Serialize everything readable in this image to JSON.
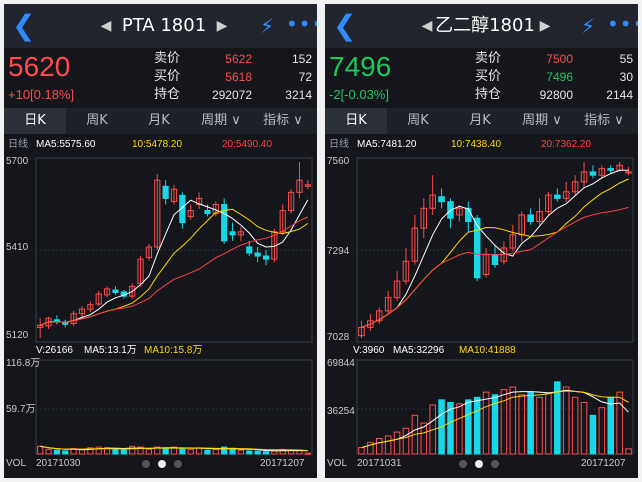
{
  "colors": {
    "up": "#ff4b4b",
    "down": "#19d7e6",
    "neutral": "#e6e6e6",
    "ma5": "#ffffff",
    "ma10": "#ffd800",
    "ma20": "#ff4040",
    "accent": "#2f8cff"
  },
  "panels": [
    {
      "symbol": "PTA 1801",
      "last_price": "5620",
      "last_color": "up",
      "change": "+10[0.18%]",
      "change_color": "up",
      "quote_rows": [
        {
          "label": "卖价",
          "value": "5622",
          "value_color": "up",
          "volume": "152"
        },
        {
          "label": "买价",
          "value": "5618",
          "value_color": "up",
          "volume": "72"
        },
        {
          "label": "持仓",
          "value": "292072",
          "value_color": "neutral",
          "volume": "3214"
        }
      ],
      "tabs": [
        "日K",
        "周K",
        "月K",
        "周期",
        "指标"
      ],
      "active_tab": 0,
      "ma_line": {
        "prefix": "日线",
        "ma5": "MA5:5575.60",
        "ma10": "10:5478.20",
        "ma20": "20:5490.40"
      },
      "price_axis": [
        "5700",
        "5410",
        "5120"
      ],
      "volume_line": {
        "v": "V:26166",
        "ma5": "MA5:13.1万",
        "ma10": "MA10:15.8万"
      },
      "volume_axis": [
        "116.8万",
        "59.7万",
        "VOL"
      ],
      "date_start": "20171030",
      "date_end": "20171207",
      "chart_data": {
        "type": "candlestick",
        "price_range": [
          5120,
          5700
        ],
        "volume_range": [
          0,
          116.8
        ],
        "candles": [
          [
            5155,
            5162,
            5120,
            5185,
            10
          ],
          [
            5160,
            5185,
            5150,
            5190,
            6
          ],
          [
            5180,
            5175,
            5165,
            5195,
            5
          ],
          [
            5172,
            5165,
            5155,
            5180,
            4
          ],
          [
            5168,
            5200,
            5160,
            5210,
            7
          ],
          [
            5200,
            5215,
            5190,
            5225,
            6
          ],
          [
            5215,
            5230,
            5205,
            5240,
            8
          ],
          [
            5232,
            5265,
            5225,
            5275,
            9
          ],
          [
            5262,
            5282,
            5255,
            5290,
            8
          ],
          [
            5278,
            5270,
            5262,
            5290,
            6
          ],
          [
            5272,
            5258,
            5250,
            5278,
            5
          ],
          [
            5258,
            5290,
            5250,
            5300,
            10
          ],
          [
            5300,
            5380,
            5290,
            5390,
            9
          ],
          [
            5385,
            5420,
            5375,
            5430,
            6
          ],
          [
            5420,
            5640,
            5410,
            5660,
            9
          ],
          [
            5620,
            5580,
            5560,
            5640,
            7
          ],
          [
            5570,
            5610,
            5560,
            5625,
            9
          ],
          [
            5590,
            5500,
            5480,
            5600,
            8
          ],
          [
            5520,
            5540,
            5510,
            5560,
            6
          ],
          [
            5560,
            5580,
            5545,
            5600,
            8
          ],
          [
            5540,
            5530,
            5520,
            5560,
            5
          ],
          [
            5530,
            5560,
            5520,
            5570,
            6
          ],
          [
            5560,
            5440,
            5430,
            5580,
            9
          ],
          [
            5470,
            5460,
            5440,
            5500,
            7
          ],
          [
            5460,
            5470,
            5440,
            5485,
            5
          ],
          [
            5420,
            5400,
            5390,
            5440,
            4
          ],
          [
            5400,
            5390,
            5370,
            5420,
            4
          ],
          [
            5390,
            5380,
            5360,
            5410,
            3
          ],
          [
            5380,
            5470,
            5370,
            5480,
            4
          ],
          [
            5470,
            5540,
            5460,
            5560,
            6
          ],
          [
            5540,
            5600,
            5530,
            5610,
            5
          ],
          [
            5600,
            5640,
            5580,
            5700,
            5
          ],
          [
            5620,
            5625,
            5610,
            5640,
            1
          ]
        ]
      }
    },
    {
      "symbol": "乙二醇1801",
      "last_price": "7496",
      "last_color": "downg",
      "change": "-2[-0.03%]",
      "change_color": "downg",
      "quote_rows": [
        {
          "label": "卖价",
          "value": "7500",
          "value_color": "up",
          "volume": "55"
        },
        {
          "label": "买价",
          "value": "7496",
          "value_color": "downg",
          "volume": "30"
        },
        {
          "label": "持仓",
          "value": "92800",
          "value_color": "neutral",
          "volume": "2144"
        }
      ],
      "tabs": [
        "日K",
        "周K",
        "月K",
        "周期",
        "指标"
      ],
      "active_tab": 0,
      "ma_line": {
        "prefix": "日线",
        "ma5": "MA5:7481.20",
        "ma10": "10:7438.40",
        "ma20": "20:7362.20"
      },
      "price_axis": [
        "7560",
        "7294",
        "7028"
      ],
      "volume_line": {
        "v": "V:3960",
        "ma5": "MA5:32296",
        "ma10": "MA10:41888"
      },
      "volume_axis": [
        "69844",
        "36254",
        "VOL"
      ],
      "date_start": "20171031",
      "date_end": "20171207",
      "chart_data": {
        "type": "candlestick",
        "price_range": [
          7028,
          7560
        ],
        "volume_range": [
          0,
          69844
        ],
        "candles": [
          [
            7035,
            7060,
            7028,
            7080,
            5000
          ],
          [
            7060,
            7080,
            7050,
            7100,
            9000
          ],
          [
            7080,
            7110,
            7070,
            7120,
            12000
          ],
          [
            7110,
            7150,
            7100,
            7170,
            14000
          ],
          [
            7150,
            7200,
            7140,
            7230,
            17000
          ],
          [
            7200,
            7260,
            7190,
            7300,
            20000
          ],
          [
            7260,
            7360,
            7250,
            7400,
            30000
          ],
          [
            7360,
            7420,
            7330,
            7450,
            24000
          ],
          [
            7420,
            7460,
            7400,
            7520,
            38000
          ],
          [
            7455,
            7440,
            7420,
            7480,
            42000
          ],
          [
            7440,
            7390,
            7360,
            7450,
            40000
          ],
          [
            7400,
            7420,
            7380,
            7430,
            39000
          ],
          [
            7420,
            7380,
            7350,
            7440,
            42000
          ],
          [
            7390,
            7210,
            7200,
            7400,
            44000
          ],
          [
            7220,
            7280,
            7210,
            7300,
            48000
          ],
          [
            7280,
            7250,
            7240,
            7310,
            46000
          ],
          [
            7260,
            7300,
            7250,
            7320,
            50000
          ],
          [
            7300,
            7340,
            7290,
            7370,
            52000
          ],
          [
            7340,
            7400,
            7320,
            7410,
            46000
          ],
          [
            7400,
            7380,
            7370,
            7420,
            48000
          ],
          [
            7380,
            7410,
            7370,
            7450,
            44000
          ],
          [
            7410,
            7460,
            7400,
            7470,
            47000
          ],
          [
            7460,
            7450,
            7440,
            7480,
            56000
          ],
          [
            7450,
            7470,
            7440,
            7500,
            52000
          ],
          [
            7470,
            7500,
            7460,
            7520,
            44000
          ],
          [
            7500,
            7530,
            7480,
            7560,
            40000
          ],
          [
            7530,
            7520,
            7510,
            7550,
            30000
          ],
          [
            7520,
            7540,
            7510,
            7550,
            36000
          ],
          [
            7540,
            7535,
            7525,
            7550,
            44000
          ],
          [
            7535,
            7550,
            7530,
            7560,
            48000
          ],
          [
            7530,
            7530,
            7520,
            7545,
            4000
          ]
        ]
      }
    }
  ]
}
